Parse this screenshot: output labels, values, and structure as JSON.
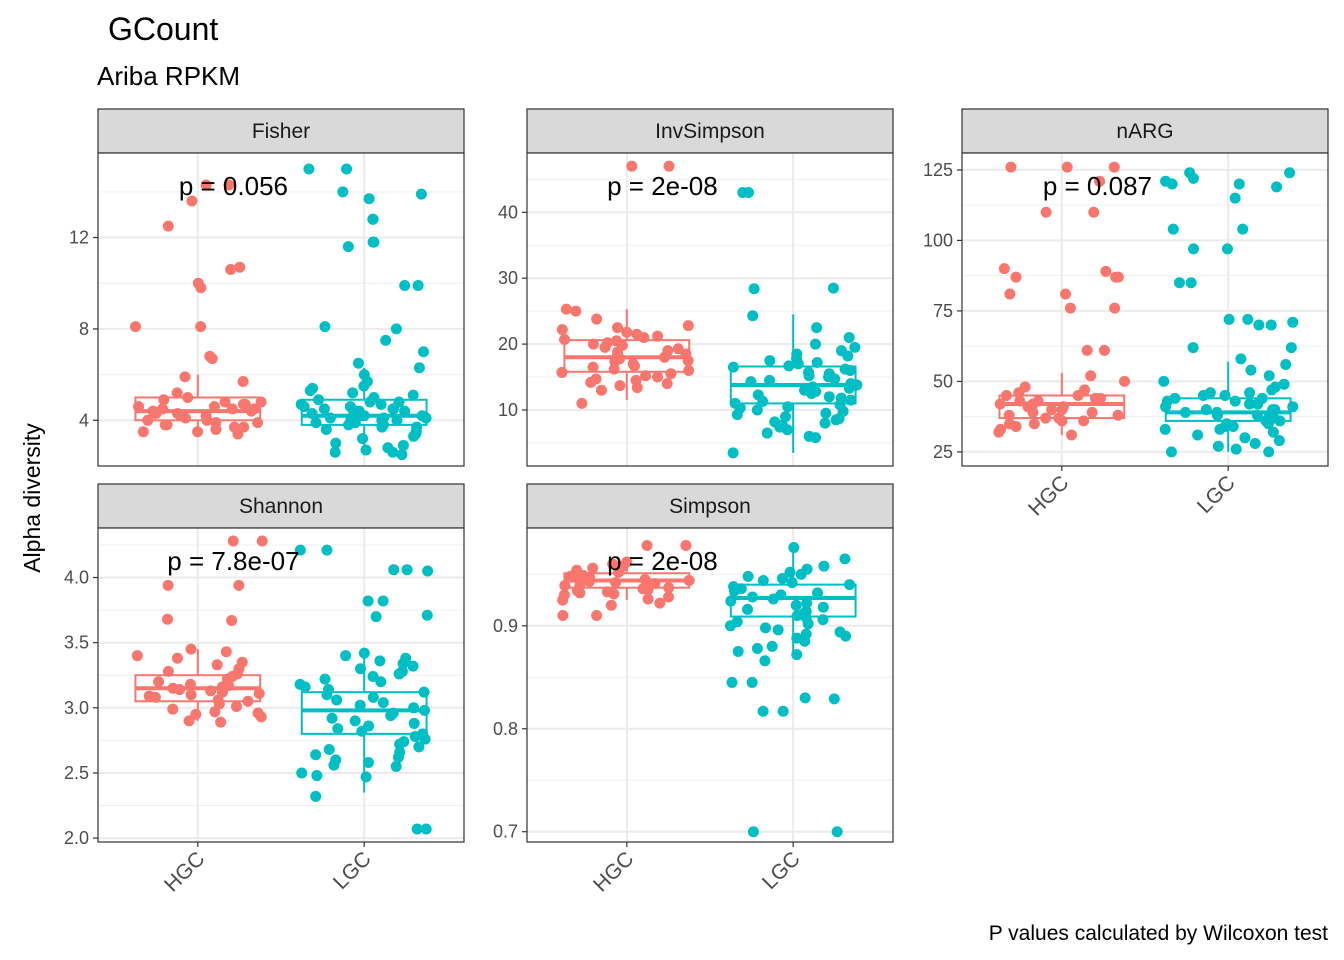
{
  "chart_data": {
    "type": "boxplot",
    "title": "GCount",
    "subtitle": "Ariba RPKM",
    "ylabel": "Alpha diversity",
    "caption": "P values calculated by Wilcoxon test",
    "categories": [
      "HGC",
      "LGC"
    ],
    "colors": {
      "HGC": "#F8766D",
      "LGC": "#00BFC4"
    },
    "panels": [
      {
        "name": "Fisher",
        "p_label": "p = 0.056",
        "ylim": [
          2.0,
          15.7
        ],
        "yticks": [
          4,
          8,
          12
        ],
        "boxes": {
          "HGC": {
            "min": 3.4,
            "q1": 4.0,
            "median": 4.4,
            "q3": 5.0,
            "max": 6.0
          },
          "LGC": {
            "min": 2.5,
            "q1": 3.8,
            "median": 4.2,
            "q3": 4.9,
            "max": 6.3
          }
        },
        "points": {
          "HGC": [
            14.3,
            14.3,
            13.6,
            12.5,
            10.7,
            10.6,
            10.0,
            9.8,
            8.1,
            8.1,
            6.8,
            6.7,
            5.9,
            5.7,
            5.2,
            5.0,
            4.9,
            4.8,
            4.8,
            4.7,
            4.7,
            4.6,
            4.6,
            4.5,
            4.5,
            4.5,
            4.4,
            4.4,
            4.3,
            4.3,
            4.2,
            4.2,
            4.1,
            4.0,
            4.0,
            3.9,
            3.9,
            3.8,
            3.8,
            3.7,
            3.7,
            3.6,
            3.5,
            3.5,
            3.4
          ],
          "LGC": [
            15.0,
            15.0,
            14.0,
            13.9,
            13.7,
            12.8,
            12.8,
            11.8,
            11.8,
            11.6,
            9.9,
            9.9,
            8.1,
            8.0,
            7.5,
            7.0,
            6.5,
            6.3,
            6.0,
            5.7,
            5.5,
            5.4,
            5.3,
            5.2,
            5.1,
            5.0,
            4.9,
            4.8,
            4.8,
            4.7,
            4.7,
            4.6,
            4.6,
            4.5,
            4.5,
            4.5,
            4.4,
            4.4,
            4.4,
            4.3,
            4.3,
            4.3,
            4.2,
            4.2,
            4.2,
            4.1,
            4.1,
            4.1,
            4.0,
            4.0,
            4.0,
            3.9,
            3.9,
            3.8,
            3.8,
            3.7,
            3.7,
            3.6,
            3.5,
            3.4,
            3.3,
            3.2,
            3.0,
            2.9,
            2.8,
            2.7,
            2.6,
            2.6,
            2.5
          ]
        }
      },
      {
        "name": "InvSimpson",
        "p_label": "p = 2e-08",
        "ylim": [
          1.5,
          49.0
        ],
        "yticks": [
          10,
          20,
          30,
          40
        ],
        "boxes": {
          "HGC": {
            "min": 11.5,
            "q1": 15.8,
            "median": 18.0,
            "q3": 20.6,
            "max": 25.3
          },
          "LGC": {
            "min": 3.5,
            "q1": 11.0,
            "median": 13.8,
            "q3": 16.6,
            "max": 24.5
          }
        },
        "points": {
          "HGC": [
            47.0,
            47.0,
            25.3,
            25.0,
            23.8,
            22.8,
            22.5,
            22.2,
            21.8,
            21.5,
            21.2,
            21.0,
            20.7,
            20.5,
            20.2,
            20.0,
            19.8,
            19.5,
            19.3,
            19.0,
            18.8,
            18.5,
            18.3,
            18.0,
            17.8,
            17.5,
            17.3,
            17.0,
            16.7,
            16.5,
            16.2,
            16.0,
            15.7,
            15.5,
            15.2,
            15.0,
            14.7,
            14.5,
            14.2,
            14.0,
            13.7,
            13.4,
            13.0,
            11.0
          ],
          "LGC": [
            43.0,
            43.0,
            28.5,
            28.4,
            24.3,
            22.5,
            21.0,
            20.0,
            19.5,
            19.0,
            18.5,
            18.2,
            17.8,
            17.5,
            17.2,
            17.0,
            16.7,
            16.5,
            16.2,
            16.0,
            15.7,
            15.5,
            15.2,
            15.0,
            14.7,
            14.5,
            14.3,
            14.0,
            13.8,
            13.5,
            13.3,
            13.0,
            12.8,
            12.5,
            12.3,
            12.0,
            11.8,
            11.5,
            11.3,
            11.0,
            10.8,
            10.5,
            10.3,
            10.0,
            9.8,
            9.5,
            9.3,
            9.0,
            8.7,
            8.5,
            8.2,
            8.0,
            7.7,
            7.4,
            7.0,
            6.5,
            6.0,
            5.8,
            3.5
          ]
        }
      },
      {
        "name": "nARG",
        "p_label": "p = 0.087",
        "ylim": [
          20,
          131
        ],
        "yticks": [
          25,
          50,
          75,
          100,
          125
        ],
        "boxes": {
          "HGC": {
            "min": 31,
            "q1": 37,
            "median": 42,
            "q3": 45,
            "max": 53
          },
          "LGC": {
            "min": 25,
            "q1": 36,
            "median": 39,
            "q3": 44,
            "max": 57
          }
        },
        "points": {
          "HGC": [
            126,
            126,
            126,
            121,
            110,
            110,
            90,
            89,
            87,
            87,
            87,
            81,
            81,
            76,
            76,
            61,
            61,
            52,
            50,
            48,
            47,
            46,
            45,
            45,
            44,
            44,
            43,
            43,
            42,
            42,
            41,
            41,
            40,
            40,
            39,
            39,
            38,
            38,
            37,
            37,
            36,
            36,
            35,
            35,
            34,
            33,
            32,
            31
          ],
          "LGC": [
            124,
            124,
            122,
            121,
            120,
            120,
            119,
            115,
            104,
            104,
            97,
            97,
            85,
            85,
            72,
            72,
            71,
            70,
            70,
            62,
            62,
            58,
            56,
            54,
            52,
            50,
            49,
            48,
            47,
            46,
            46,
            45,
            45,
            44,
            44,
            43,
            43,
            42,
            42,
            41,
            41,
            40,
            40,
            40,
            39,
            39,
            38,
            38,
            37,
            37,
            36,
            36,
            35,
            35,
            34,
            34,
            33,
            33,
            32,
            31,
            30,
            29,
            28,
            27,
            26,
            25,
            25
          ]
        }
      },
      {
        "name": "Shannon",
        "p_label": "p = 7.8e-07",
        "ylim": [
          1.97,
          4.38
        ],
        "yticks": [
          2.0,
          2.5,
          3.0,
          3.5,
          4.0
        ],
        "boxes": {
          "HGC": {
            "min": 2.9,
            "q1": 3.05,
            "median": 3.15,
            "q3": 3.25,
            "max": 3.45
          },
          "LGC": {
            "min": 2.35,
            "q1": 2.8,
            "median": 2.98,
            "q3": 3.12,
            "max": 3.42
          }
        },
        "points": {
          "HGC": [
            4.28,
            4.28,
            3.94,
            3.94,
            3.68,
            3.67,
            3.45,
            3.43,
            3.4,
            3.38,
            3.35,
            3.33,
            3.3,
            3.28,
            3.26,
            3.24,
            3.22,
            3.2,
            3.18,
            3.17,
            3.16,
            3.15,
            3.14,
            3.13,
            3.12,
            3.11,
            3.1,
            3.09,
            3.08,
            3.06,
            3.05,
            3.03,
            3.01,
            2.99,
            2.97,
            2.96,
            2.95,
            2.93,
            2.9,
            2.89
          ],
          "LGC": [
            4.21,
            4.21,
            4.06,
            4.06,
            4.05,
            3.82,
            3.82,
            3.71,
            3.7,
            3.42,
            3.4,
            3.38,
            3.36,
            3.34,
            3.32,
            3.3,
            3.28,
            3.26,
            3.24,
            3.22,
            3.2,
            3.18,
            3.16,
            3.14,
            3.12,
            3.1,
            3.08,
            3.06,
            3.04,
            3.02,
            3.0,
            2.98,
            2.96,
            2.94,
            2.92,
            2.9,
            2.88,
            2.86,
            2.84,
            2.82,
            2.8,
            2.78,
            2.76,
            2.74,
            2.72,
            2.7,
            2.68,
            2.66,
            2.64,
            2.62,
            2.6,
            2.58,
            2.56,
            2.55,
            2.5,
            2.48,
            2.47,
            2.32,
            2.07,
            2.07
          ]
        }
      },
      {
        "name": "Simpson",
        "p_label": "p = 2e-08",
        "ylim": [
          0.69,
          0.995
        ],
        "yticks": [
          0.7,
          0.8,
          0.9
        ],
        "boxes": {
          "HGC": {
            "min": 0.925,
            "q1": 0.937,
            "median": 0.944,
            "q3": 0.951,
            "max": 0.962
          },
          "LGC": {
            "min": 0.87,
            "q1": 0.909,
            "median": 0.927,
            "q3": 0.94,
            "max": 0.975
          }
        },
        "points": {
          "HGC": [
            0.978,
            0.978,
            0.962,
            0.96,
            0.958,
            0.956,
            0.954,
            0.952,
            0.95,
            0.949,
            0.948,
            0.947,
            0.946,
            0.945,
            0.944,
            0.943,
            0.942,
            0.941,
            0.94,
            0.939,
            0.938,
            0.937,
            0.936,
            0.935,
            0.934,
            0.933,
            0.932,
            0.931,
            0.93,
            0.928,
            0.926,
            0.925,
            0.922,
            0.92,
            0.91,
            0.91
          ],
          "LGC": [
            0.976,
            0.965,
            0.958,
            0.955,
            0.952,
            0.95,
            0.948,
            0.946,
            0.944,
            0.942,
            0.94,
            0.938,
            0.936,
            0.934,
            0.932,
            0.93,
            0.928,
            0.926,
            0.924,
            0.922,
            0.92,
            0.918,
            0.916,
            0.914,
            0.912,
            0.91,
            0.908,
            0.906,
            0.904,
            0.902,
            0.9,
            0.898,
            0.896,
            0.894,
            0.892,
            0.89,
            0.888,
            0.885,
            0.88,
            0.878,
            0.875,
            0.872,
            0.866,
            0.845,
            0.845,
            0.83,
            0.829,
            0.817,
            0.817,
            0.7,
            0.7
          ]
        }
      }
    ]
  }
}
